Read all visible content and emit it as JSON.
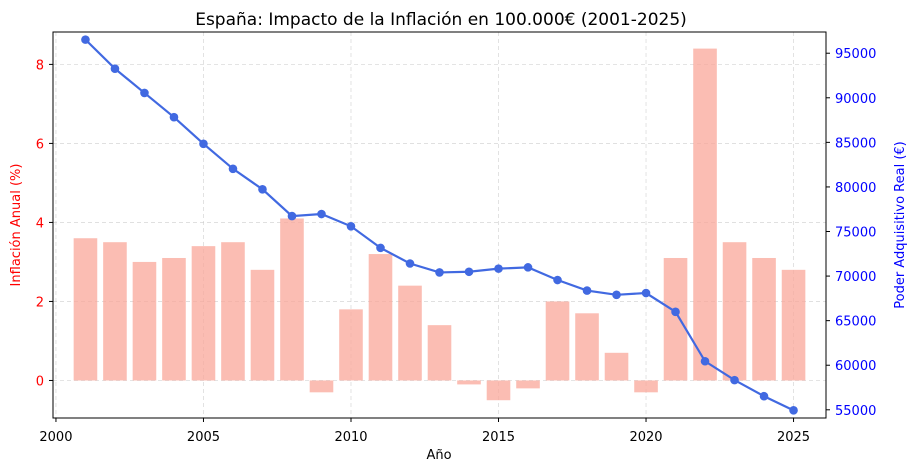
{
  "chart_data": {
    "type": "bar+line",
    "title": "España: Impacto de la Inflación en 100.000€ (2001-2025)",
    "xlabel": "Año",
    "ylabel_left": "Inflación Anual (%)",
    "ylabel_right": "Poder Adquisitivo Real (€)",
    "x": [
      2001,
      2002,
      2003,
      2004,
      2005,
      2006,
      2007,
      2008,
      2009,
      2010,
      2011,
      2012,
      2013,
      2014,
      2015,
      2016,
      2017,
      2018,
      2019,
      2020,
      2021,
      2022,
      2023,
      2024,
      2025
    ],
    "xlim": [
      1999.9,
      2026.1
    ],
    "xticks": [
      "2000",
      "2005",
      "2010",
      "2015",
      "2020",
      "2025"
    ],
    "grid": true,
    "series": [
      {
        "type": "bar",
        "axis": "left",
        "color": "#f9a79a",
        "values": [
          3.6,
          3.5,
          3.0,
          3.1,
          3.4,
          3.5,
          2.8,
          4.1,
          -0.3,
          1.8,
          3.2,
          2.4,
          1.4,
          -0.1,
          -0.5,
          -0.2,
          2.0,
          1.7,
          0.7,
          -0.3,
          3.1,
          8.4,
          3.5,
          3.1,
          2.8
        ]
      },
      {
        "type": "line",
        "axis": "right",
        "color": "#4169e1",
        "values": [
          96526,
          93263,
          90546,
          87826,
          84840,
          82033,
          79736,
          76732,
          76962,
          75586,
          73165,
          71410,
          70411,
          70484,
          70836,
          70978,
          69558,
          68375,
          67897,
          68100,
          65988,
          60445,
          58330,
          56522,
          54939
        ]
      }
    ],
    "ylim_left": [
      -0.95,
      8.82
    ],
    "yticks_left": [
      "0",
      "2",
      "4",
      "6",
      "8"
    ],
    "ylim_right": [
      54080,
      97380
    ],
    "yticks_right": [
      "55000",
      "60000",
      "65000",
      "70000",
      "75000",
      "80000",
      "85000",
      "90000",
      "95000"
    ],
    "colors": {
      "left_axis": "#ff0000",
      "right_axis": "#0000ff"
    }
  }
}
